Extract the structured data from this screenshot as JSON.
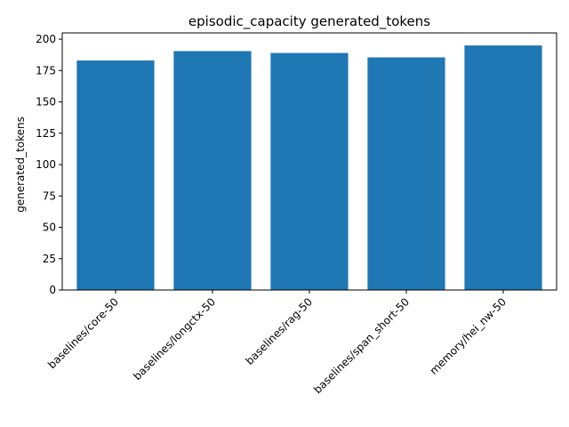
{
  "chart_data": {
    "type": "bar",
    "title": "episodic_capacity generated_tokens",
    "xlabel": "",
    "ylabel": "generated_tokens",
    "categories": [
      "baselines/core-50",
      "baselines/longctx-50",
      "baselines/rag-50",
      "baselines/span_short-50",
      "memory/hei_nw-50"
    ],
    "values": [
      183,
      190.5,
      189,
      185.5,
      195
    ],
    "ylim": [
      0,
      205
    ],
    "yticks": [
      0,
      25,
      50,
      75,
      100,
      125,
      150,
      175,
      200
    ],
    "grid": false,
    "legend": "none",
    "bar_color": "#1f77b4"
  }
}
